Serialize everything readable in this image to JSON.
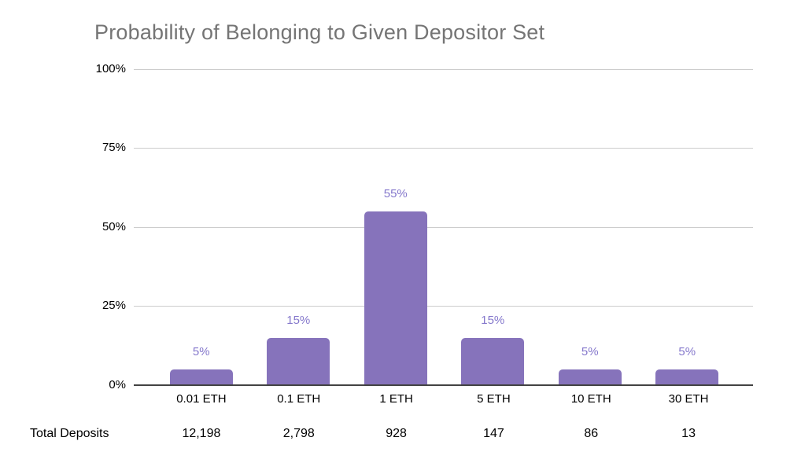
{
  "chart_data": {
    "type": "bar",
    "title": "Probability of Belonging to Given Depositor Set",
    "categories": [
      "0.01 ETH",
      "0.1 ETH",
      "1 ETH",
      "5 ETH",
      "10 ETH",
      "30 ETH"
    ],
    "values": [
      5,
      15,
      55,
      15,
      5,
      5
    ],
    "value_labels": [
      "5%",
      "15%",
      "55%",
      "15%",
      "5%",
      "5%"
    ],
    "xlabel": "",
    "ylabel": "",
    "ylim": [
      0,
      100
    ],
    "yticks": [
      "100%",
      "75%",
      "50%",
      "25%",
      "0%"
    ],
    "grid": true,
    "legend_position": "none",
    "table_row": {
      "label": "Total Deposits",
      "values": [
        "12,198",
        "2,798",
        "928",
        "147",
        "86",
        "13"
      ]
    }
  },
  "colors": {
    "bar_fill": "#8673bb",
    "value_label": "#8578cc",
    "title_text": "#757575",
    "gridline": "#cccccc",
    "axis_line": "#424242",
    "tick_text": "#000000"
  }
}
